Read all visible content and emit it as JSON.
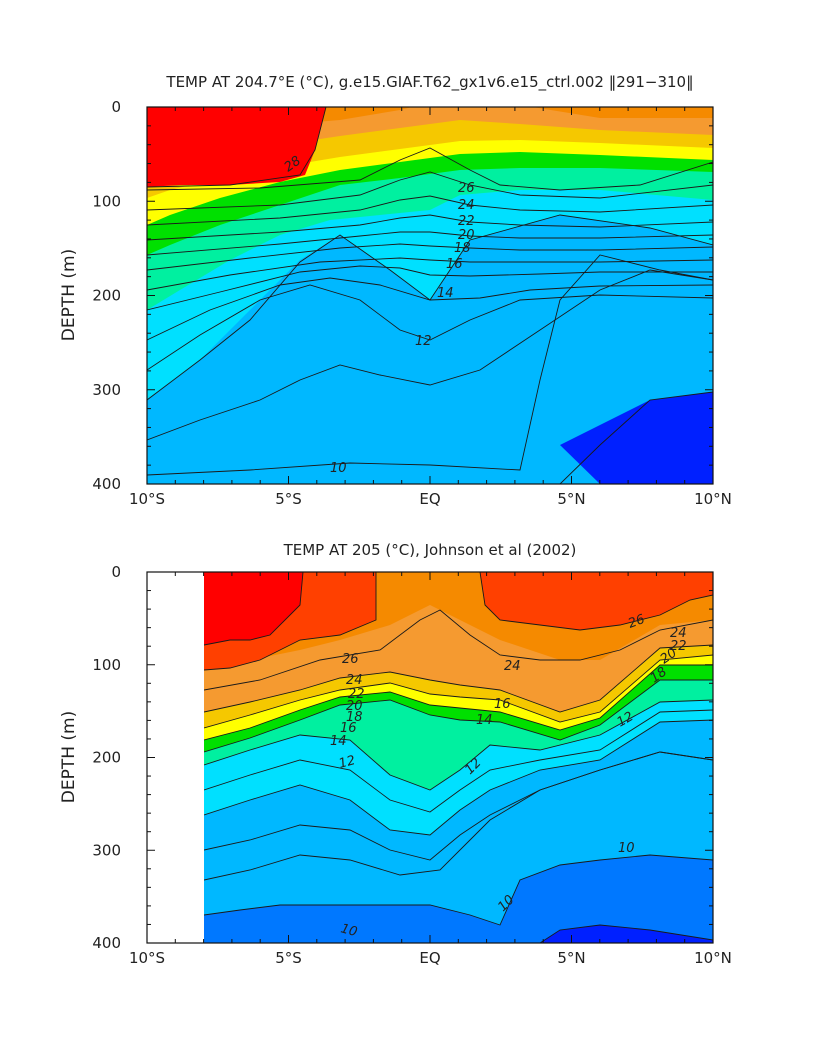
{
  "chart_data": [
    {
      "type": "contour",
      "title": "TEMP AT 204.7°E (°C), g.e15.GIAF.T62_gx1v6.e15_ctrl.002 ‖291−310‖",
      "xlabel": "",
      "ylabel": "DEPTH (m)",
      "xlim": [
        -10,
        10
      ],
      "ylim": [
        400,
        0
      ],
      "x_ticks": [
        "10°S",
        "5°S",
        "EQ",
        "5°N",
        "10°N"
      ],
      "y_ticks": [
        "0",
        "100",
        "200",
        "300",
        "400"
      ],
      "data_extent_x": [
        -10,
        10
      ],
      "contour_levels": [
        10,
        12,
        14,
        16,
        18,
        20,
        22,
        24,
        26,
        28
      ],
      "contour_labels": [
        "28",
        "26",
        "24",
        "22",
        "20",
        "18",
        "16",
        "14",
        "12",
        "10"
      ],
      "thermocline_center": {
        "x": [
          -10,
          -5,
          0,
          5,
          10
        ],
        "depth": [
          225,
          185,
          150,
          160,
          155
        ]
      },
      "warm_pool_28C_top_m": 0,
      "notes_depths": {
        "isotherm_10C_m": {
          "x": [
            -10,
            -5,
            0,
            5,
            10
          ],
          "depth": [
            420,
            385,
            385,
            270,
            260
          ]
        }
      }
    },
    {
      "type": "contour",
      "title": "TEMP AT 205 (°C), Johnson et al (2002)",
      "xlabel": "",
      "ylabel": "DEPTH (m)",
      "xlim": [
        -10,
        10
      ],
      "ylim": [
        400,
        0
      ],
      "x_ticks": [
        "10°S",
        "5°S",
        "EQ",
        "5°N",
        "10°N"
      ],
      "y_ticks": [
        "0",
        "100",
        "200",
        "300",
        "400"
      ],
      "data_extent_x": [
        -8,
        10
      ],
      "contour_levels": [
        10,
        12,
        14,
        16,
        18,
        20,
        22,
        24,
        26
      ],
      "contour_labels": [
        "26",
        "26",
        "24",
        "24",
        "22",
        "20",
        "18",
        "16",
        "14",
        "14",
        "16",
        "18",
        "20",
        "22",
        "24",
        "12",
        "12",
        "12",
        "10",
        "10",
        "10"
      ],
      "thermocline_center": {
        "x": [
          -8,
          -5,
          0,
          5,
          10
        ],
        "depth": [
          205,
          165,
          140,
          150,
          90
        ]
      },
      "notes_depths": {
        "isotherm_10C_m": {
          "x": [
            -8,
            -5,
            0,
            5,
            10
          ],
          "depth": [
            360,
            370,
            380,
            260,
            270
          ]
        }
      }
    }
  ],
  "palette": {
    "t28": "#ff0000",
    "t26_28": "#ff4000",
    "t24_26": "#f58a00",
    "t22_24": "#f59a30",
    "t20_22": "#f5c800",
    "t18_20": "#ffff00",
    "t16_18": "#00e000",
    "t14_16": "#00f0a0",
    "t12_14": "#00e0ff",
    "t10_12": "#00b8ff",
    "t8_10": "#0078ff",
    "t_cold": "#0020ff"
  }
}
